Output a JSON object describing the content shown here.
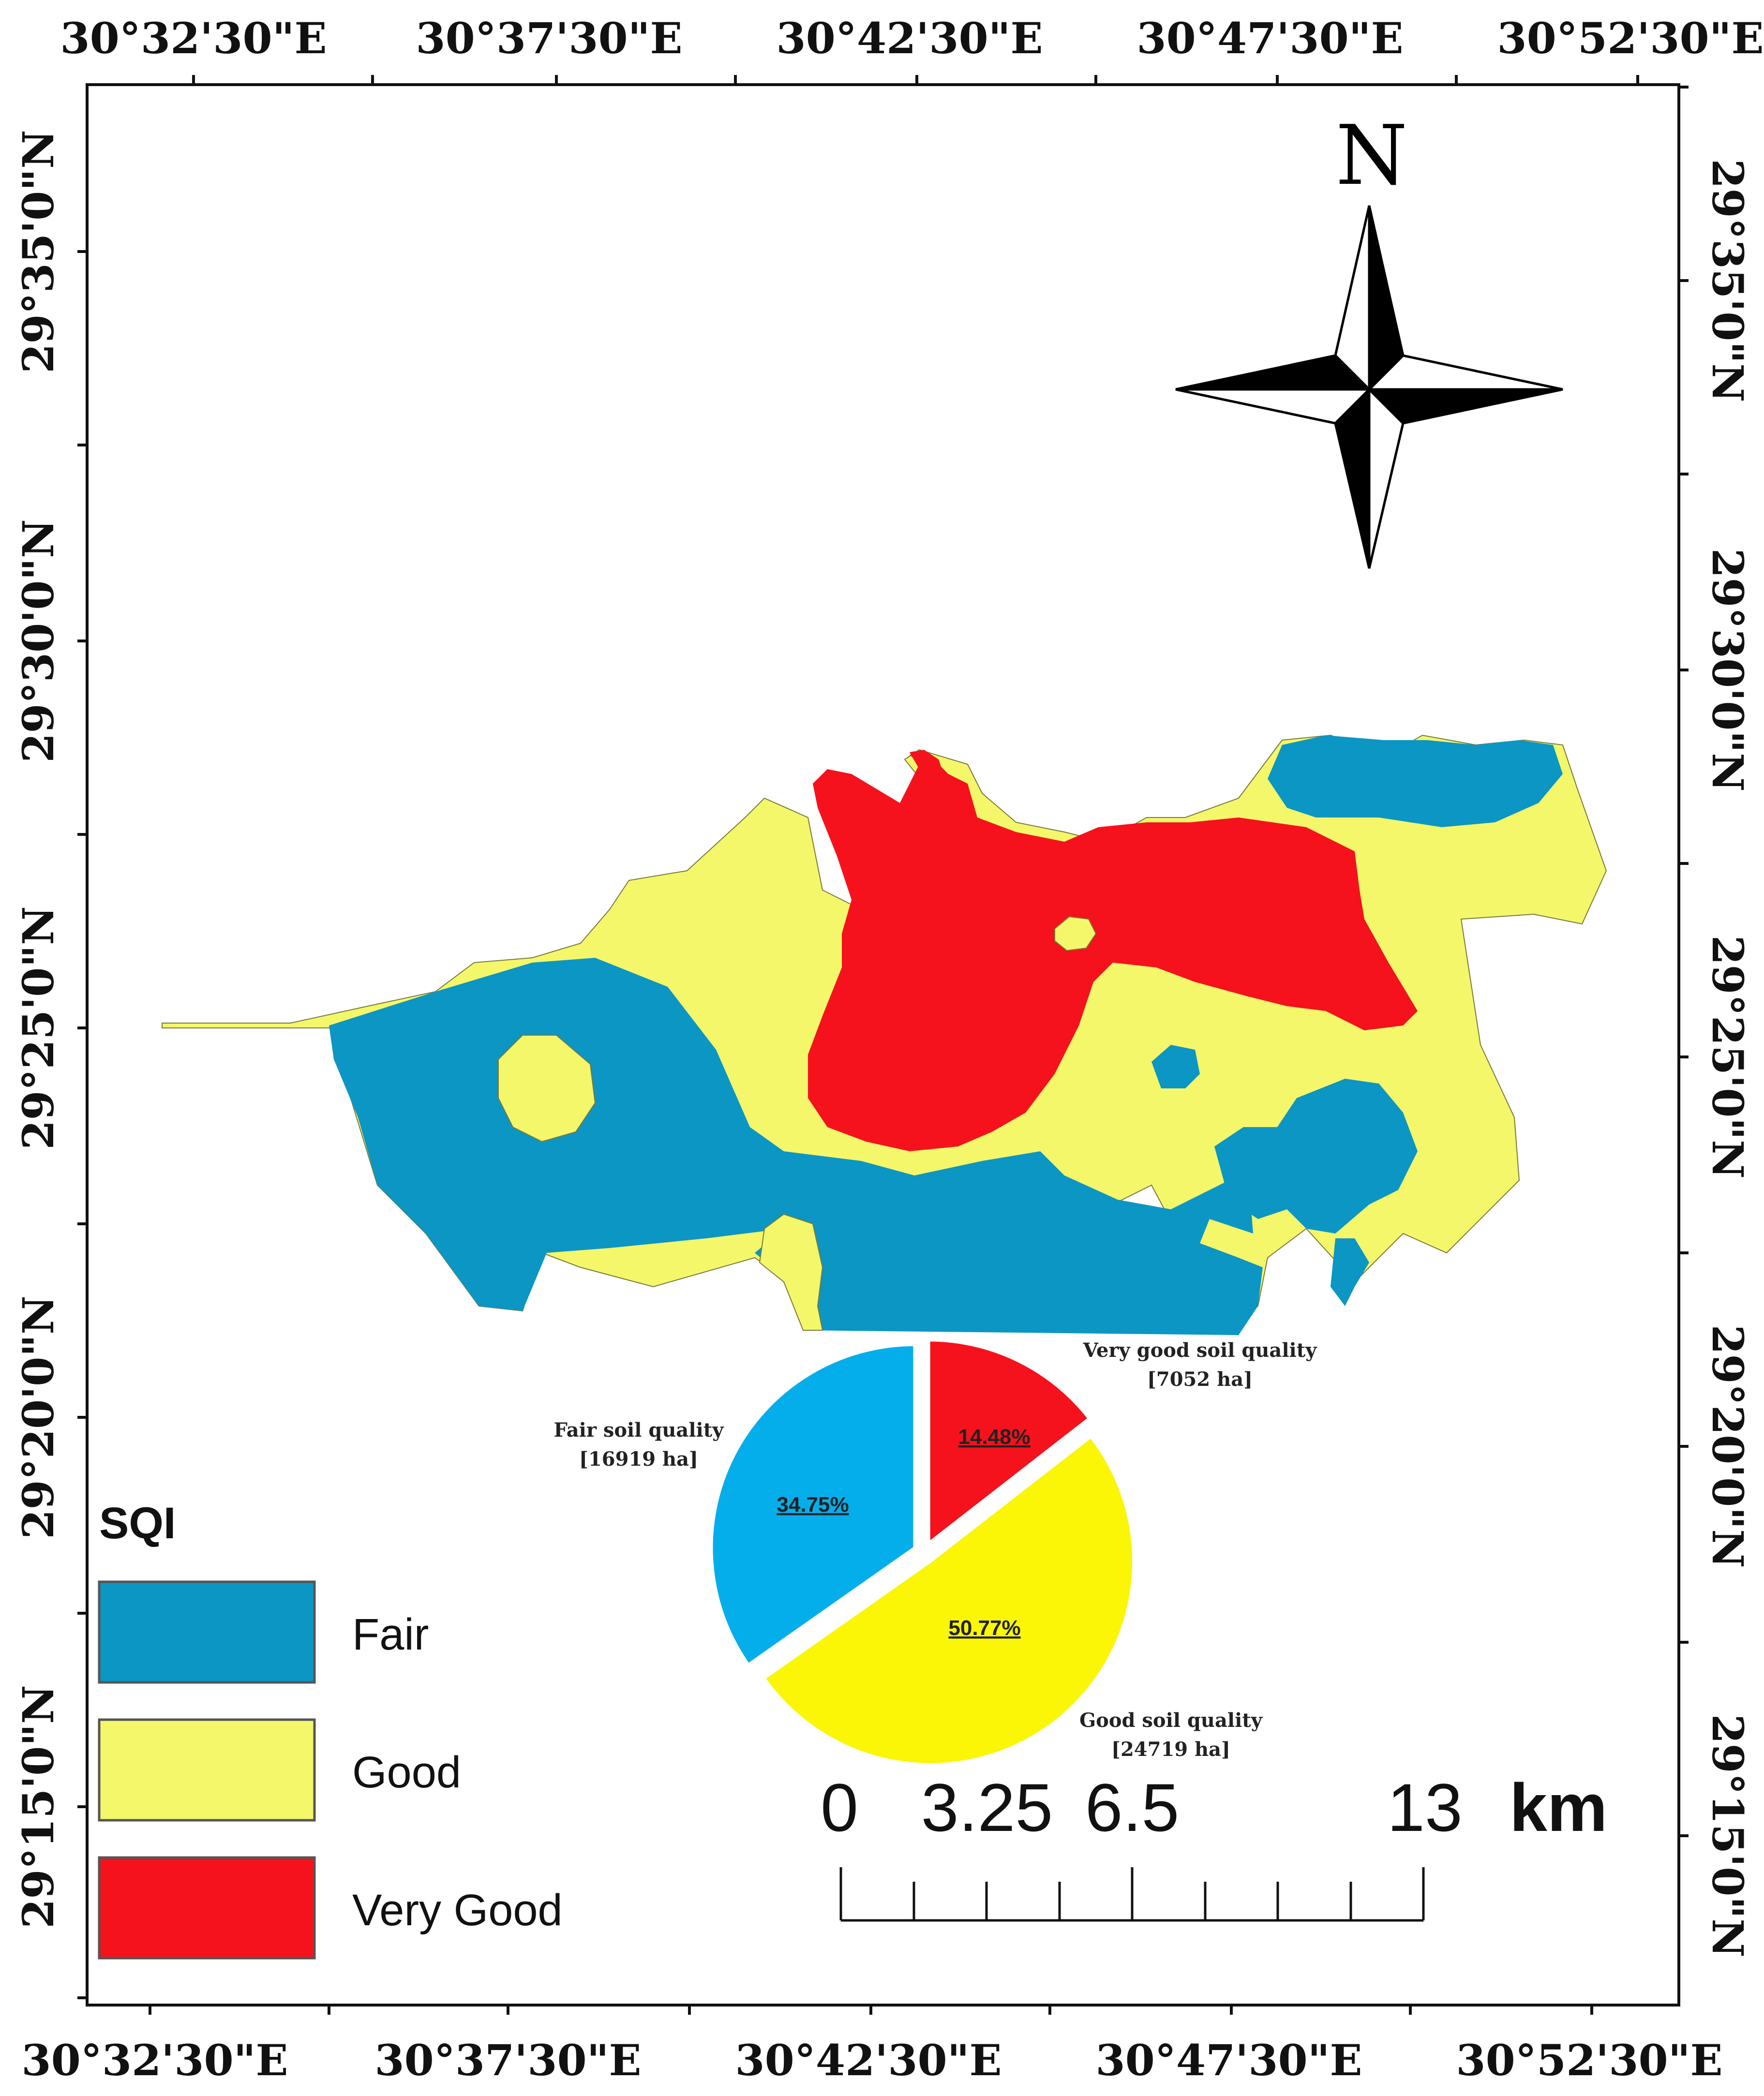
{
  "map": {
    "top_lon_labels": [
      "30°32'30\"E",
      "30°37'30\"E",
      "30°42'30\"E",
      "30°47'30\"E",
      "30°52'30\"E"
    ],
    "bottom_lon_labels": [
      "30°32'30\"E",
      "30°37'30\"E",
      "30°42'30\"E",
      "30°47'30\"E",
      "30°52'30\"E"
    ],
    "left_lat_labels": [
      "29°35'0\"N",
      "29°30'0\"N",
      "29°25'0\"N",
      "29°20'0\"N",
      "29°15'0\"N"
    ],
    "right_lat_labels": [
      "29°35'0\"N",
      "29°30'0\"N",
      "29°25'0\"N",
      "29°20'0\"N",
      "29°15'0\"N"
    ],
    "north_arrow": {
      "letter": "N",
      "icon": "compass-rose-icon"
    },
    "colors": {
      "fair": "#0B96C4",
      "good": "#F4F76A",
      "very_good": "#F5121C"
    }
  },
  "legend": {
    "title": "SQI",
    "items": [
      {
        "label": "Fair",
        "color": "#0B96C4"
      },
      {
        "label": "Good",
        "color": "#F4F76A"
      },
      {
        "label": "Very Good",
        "color": "#F5121C"
      }
    ]
  },
  "pie": {
    "slices": [
      {
        "label": "Very good soil quality",
        "area": "[7052 ha]",
        "percent_label": "14.48%",
        "value": 14.48,
        "color": "#F5121C"
      },
      {
        "label": "Good soil quality",
        "area": "[24719 ha]",
        "percent_label": "50.77%",
        "value": 50.77,
        "color": "#FAF605"
      },
      {
        "label": "Fair soil quality",
        "area": "[16919 ha]",
        "percent_label": "34.75%",
        "value": 34.75,
        "color": "#04AEEA"
      }
    ]
  },
  "scale_bar": {
    "ticks": [
      "0",
      "3.25",
      "6.5",
      "13"
    ],
    "unit": "km"
  }
}
